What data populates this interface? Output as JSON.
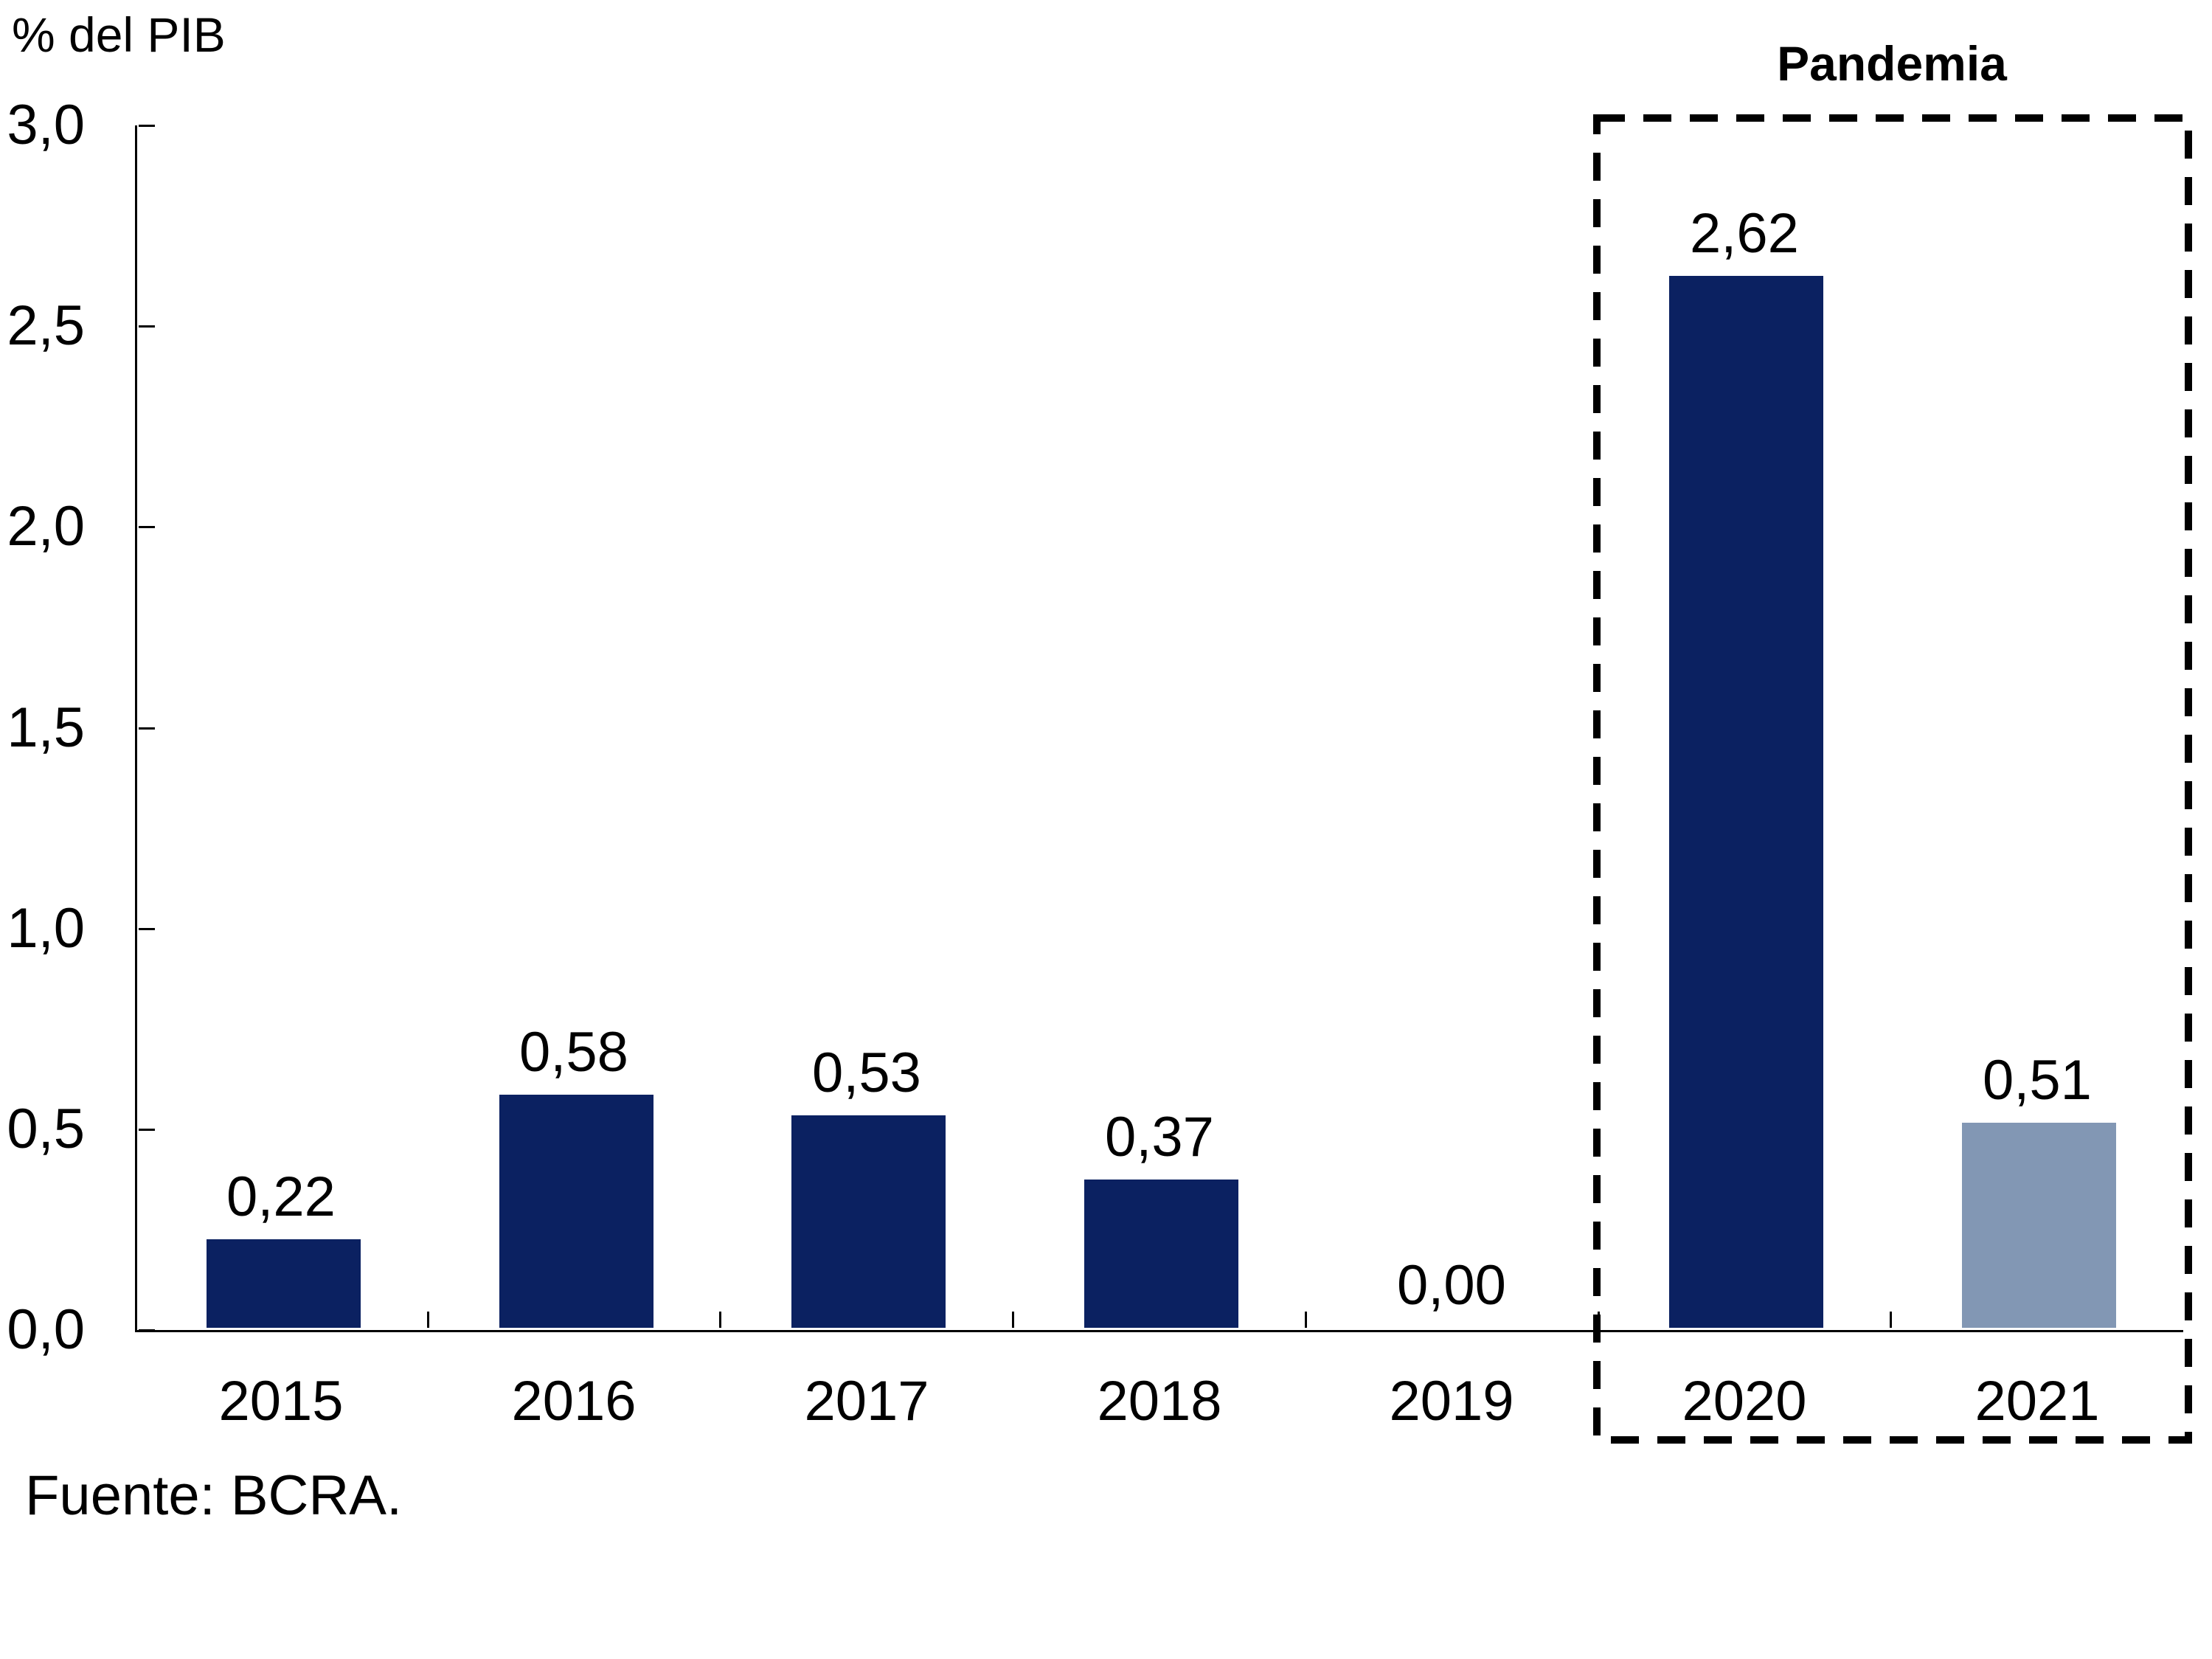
{
  "page": {
    "unit_label": "% del PIB",
    "pandemic_label": "Pandemia",
    "source": "Fuente: BCRA."
  },
  "colors": {
    "bar_default": "#0b2161",
    "bar_highlight_2021": "#8297b4",
    "axis": "#000000",
    "text": "#000000",
    "background": "#ffffff"
  },
  "chart_data": {
    "type": "bar",
    "title": "",
    "ylabel": "% del PIB",
    "xlabel": "",
    "categories": [
      "2015",
      "2016",
      "2017",
      "2018",
      "2019",
      "2020",
      "2021"
    ],
    "values": [
      0.22,
      0.58,
      0.53,
      0.37,
      0.0,
      2.62,
      0.51
    ],
    "value_labels": [
      "0,22",
      "0,58",
      "0,53",
      "0,37",
      "0,00",
      "2,62",
      "0,51"
    ],
    "ylim": [
      0,
      3.0
    ],
    "ytick_values": [
      0,
      0.5,
      1.0,
      1.5,
      2.0,
      2.5,
      3.0
    ],
    "ytick_labels": [
      "0,0",
      "0,5",
      "1,0",
      "1,5",
      "2,0",
      "2,5",
      "3,0"
    ],
    "grid": false,
    "legend": false,
    "bar_colors": {
      "default": "#0b2161",
      "2021": "#8297b4"
    },
    "annotation_box": {
      "label": "Pandemia",
      "from_category": "2020",
      "to_category": "2021",
      "style": "dashed-rectangle"
    },
    "source": "Fuente: BCRA."
  }
}
